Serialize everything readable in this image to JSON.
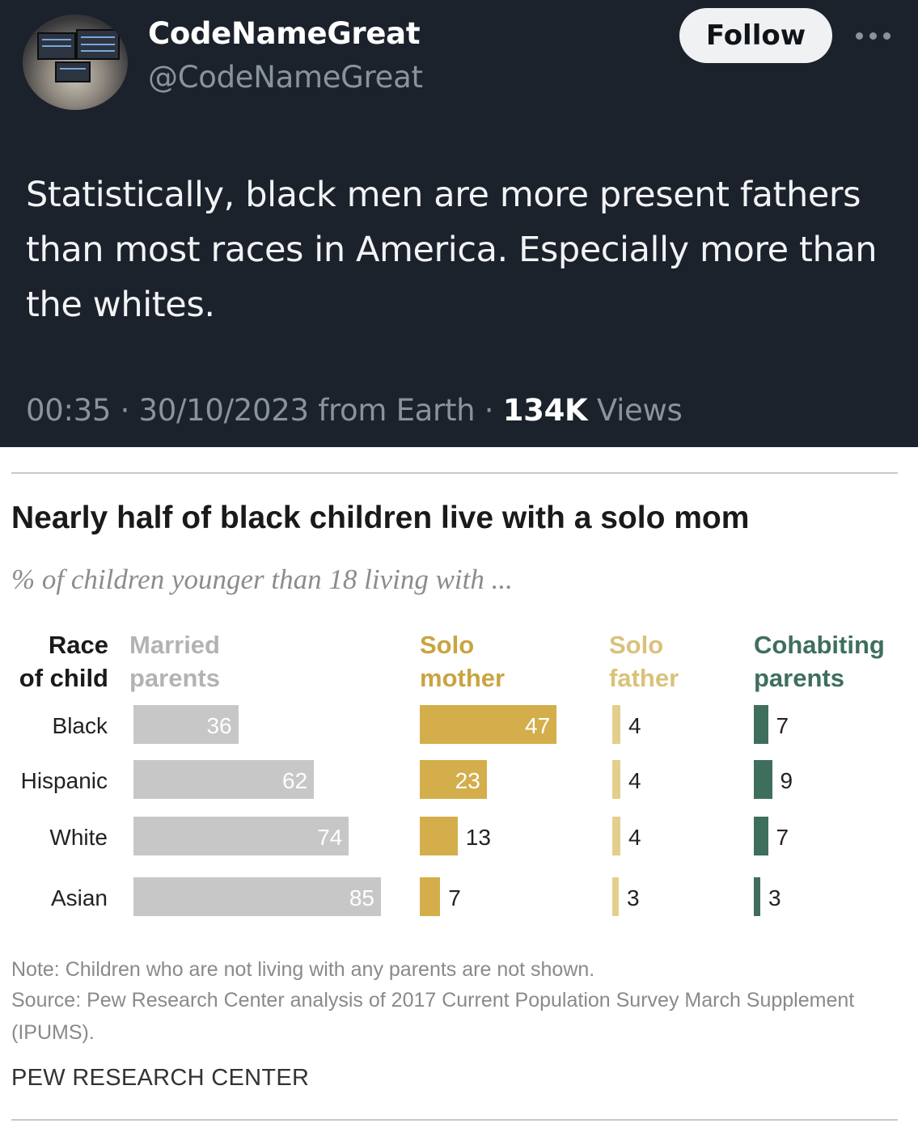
{
  "tweet": {
    "display_name": "CodeNameGreat",
    "handle": "@CodeNameGreat",
    "follow_label": "Follow",
    "more_icon": "more-horizontal-icon",
    "text": "Statistically, black men are more present fathers than most races in America. Especially more than the whites.",
    "meta_prefix": "00:35 · 30/10/2023 from Earth · ",
    "views_count": "134K",
    "views_label": " Views"
  },
  "chart_data": {
    "type": "bar",
    "title": "Nearly half of black children live with a solo mom",
    "subtitle": "% of children younger than 18 living with ...",
    "row_header": "Race\nof child",
    "categories": [
      "Black",
      "Hispanic",
      "White",
      "Asian"
    ],
    "series": [
      {
        "name": "Married\nparents",
        "values": [
          36,
          62,
          74,
          85
        ],
        "color": "#c7c7c7",
        "header_color": "#b3b3b3"
      },
      {
        "name": "Solo\nmother",
        "values": [
          47,
          23,
          13,
          7
        ],
        "color": "#d3ae4b",
        "header_color": "#c9a440"
      },
      {
        "name": "Solo\nfather",
        "values": [
          4,
          4,
          4,
          3
        ],
        "color": "#e3cf8d",
        "header_color": "#d9c27a"
      },
      {
        "name": "Cohabiting\nparents",
        "values": [
          7,
          9,
          7,
          3
        ],
        "color": "#3e6f5c",
        "header_color": "#3e6f5c"
      }
    ],
    "note": "Note: Children who are not living with any parents are not shown.",
    "source": "Source: Pew Research Center analysis of 2017 Current Population Survey March Supplement (IPUMS).",
    "credit": "PEW RESEARCH CENTER"
  }
}
